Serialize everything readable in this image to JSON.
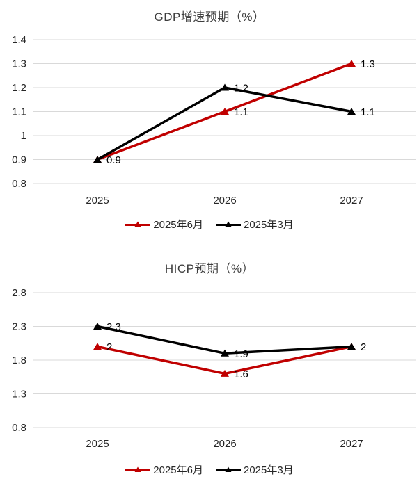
{
  "page": {
    "background": "#ffffff"
  },
  "colors": {
    "series_red": "#c00000",
    "series_black": "#000000",
    "gridline": "#d9d9d9",
    "title_text": "#3d3d3d",
    "tick_text": "#262626",
    "data_label_text": "#000000"
  },
  "chart_data": [
    {
      "type": "line",
      "title": "GDP增速预期（%）",
      "categories": [
        "2025",
        "2026",
        "2027"
      ],
      "ylim": [
        0.8,
        1.4
      ],
      "y_ticks": [
        1.4,
        1.3,
        1.2,
        1.1,
        1,
        0.9,
        0.8
      ],
      "grid": true,
      "legend_position": "bottom",
      "series": [
        {
          "name": "2025年6月",
          "color": "#c00000",
          "values": [
            0.9,
            1.1,
            1.3
          ],
          "point_labels": [
            "0.9",
            "1.1",
            "1.3"
          ]
        },
        {
          "name": "2025年3月",
          "color": "#000000",
          "values": [
            0.9,
            1.2,
            1.1
          ],
          "point_labels": [
            null,
            "1.2",
            "1.1"
          ]
        }
      ]
    },
    {
      "type": "line",
      "title": "HICP预期（%）",
      "categories": [
        "2025",
        "2026",
        "2027"
      ],
      "ylim": [
        0.8,
        2.8
      ],
      "y_ticks": [
        2.8,
        2.3,
        1.8,
        1.3,
        0.8
      ],
      "grid": true,
      "legend_position": "bottom",
      "series": [
        {
          "name": "2025年6月",
          "color": "#c00000",
          "values": [
            2,
            1.6,
            2
          ],
          "point_labels": [
            "2",
            "1.6",
            null
          ]
        },
        {
          "name": "2025年3月",
          "color": "#000000",
          "values": [
            2.3,
            1.9,
            2
          ],
          "point_labels": [
            "2.3",
            "1.9",
            "2"
          ]
        }
      ]
    }
  ]
}
